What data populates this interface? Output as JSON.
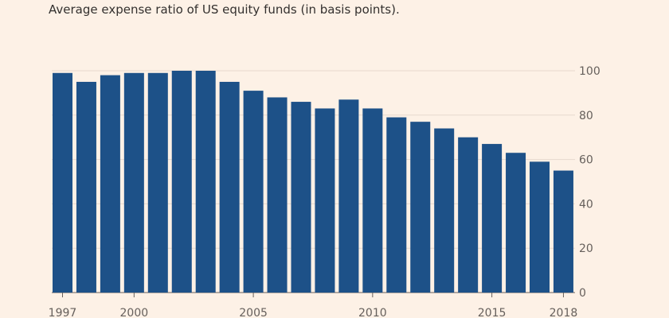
{
  "chart_data": {
    "type": "bar",
    "title": "",
    "subtitle": "Average expense ratio of US equity funds (in basis points).",
    "xlabel": "",
    "ylabel": "",
    "ylim": [
      0,
      100
    ],
    "yticks": [
      0,
      20,
      40,
      60,
      80,
      100
    ],
    "yaxis_position": "right",
    "grid": true,
    "bar_color": "#1d5188",
    "gridline_color": "#e6d9ce",
    "categories": [
      "1997",
      "1998",
      "1999",
      "2000",
      "2001",
      "2002",
      "2003",
      "2004",
      "2005",
      "2006",
      "2007",
      "2008",
      "2009",
      "2010",
      "2011",
      "2012",
      "2013",
      "2014",
      "2015",
      "2016",
      "2017",
      "2018"
    ],
    "xtick_labels": [
      "1997",
      "2000",
      "2005",
      "2010",
      "2015",
      "2018"
    ],
    "series": [
      {
        "values": [
          99,
          95,
          98,
          99,
          99,
          100,
          100,
          95,
          91,
          88,
          86,
          83,
          87,
          83,
          79,
          77,
          74,
          70,
          67,
          63,
          59,
          55
        ]
      }
    ]
  }
}
